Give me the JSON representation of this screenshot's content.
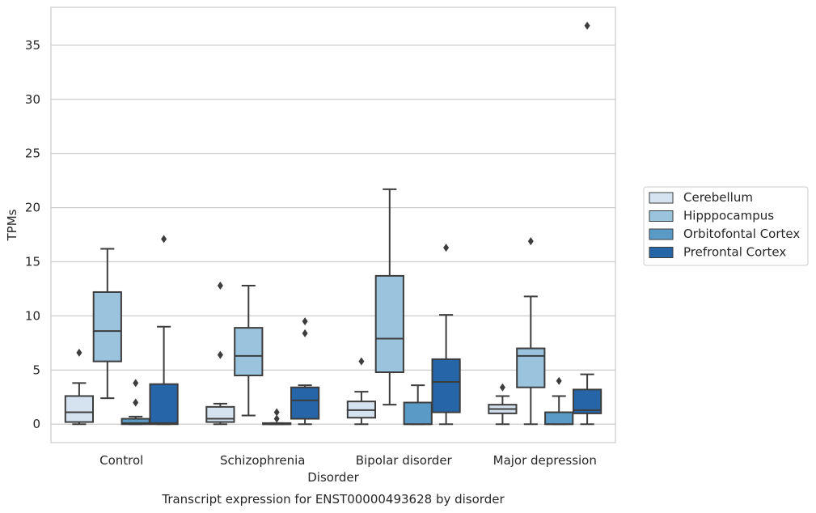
{
  "chart_data": {
    "type": "box",
    "title": "",
    "xlabel": "Disorder",
    "ylabel": "TPMs",
    "caption": "Transcript expression for ENST00000493628 by disorder",
    "ylim": [
      -1.7,
      38.5
    ],
    "yticks": [
      0,
      5,
      10,
      15,
      20,
      25,
      30,
      35
    ],
    "grid": "horizontal",
    "legend_position": "right",
    "categories": [
      "Control",
      "Schizophrenia",
      "Bipolar disorder",
      "Major depression"
    ],
    "series": [
      {
        "name": "Cerebellum",
        "color": "#d5e3f0",
        "boxes": [
          {
            "whisker_low": 0.0,
            "q1": 0.2,
            "median": 1.1,
            "q3": 2.6,
            "whisker_high": 3.8,
            "outliers": [
              6.6
            ]
          },
          {
            "whisker_low": 0.0,
            "q1": 0.2,
            "median": 0.5,
            "q3": 1.6,
            "whisker_high": 1.9,
            "outliers": [
              12.8,
              6.4
            ]
          },
          {
            "whisker_low": 0.0,
            "q1": 0.6,
            "median": 1.3,
            "q3": 2.1,
            "whisker_high": 3.0,
            "outliers": [
              5.8
            ]
          },
          {
            "whisker_low": 0.0,
            "q1": 1.0,
            "median": 1.4,
            "q3": 1.8,
            "whisker_high": 2.6,
            "outliers": [
              3.4
            ]
          }
        ]
      },
      {
        "name": "Hipppocampus",
        "color": "#9ac3dd",
        "boxes": [
          {
            "whisker_low": 2.4,
            "q1": 5.8,
            "median": 8.6,
            "q3": 12.2,
            "whisker_high": 16.2,
            "outliers": []
          },
          {
            "whisker_low": 0.8,
            "q1": 4.5,
            "median": 6.3,
            "q3": 8.9,
            "whisker_high": 12.8,
            "outliers": []
          },
          {
            "whisker_low": 1.8,
            "q1": 4.8,
            "median": 7.9,
            "q3": 13.7,
            "whisker_high": 21.7,
            "outliers": []
          },
          {
            "whisker_low": 0.0,
            "q1": 3.4,
            "median": 6.3,
            "q3": 7.0,
            "whisker_high": 11.8,
            "outliers": [
              16.9
            ]
          }
        ]
      },
      {
        "name": "Orbitofontal Cortex",
        "color": "#5a9ac6",
        "boxes": [
          {
            "whisker_low": 0.0,
            "q1": 0.0,
            "median": 0.1,
            "q3": 0.5,
            "whisker_high": 0.7,
            "outliers": [
              3.8,
              2.0
            ]
          },
          {
            "whisker_low": 0.0,
            "q1": 0.0,
            "median": 0.0,
            "q3": 0.1,
            "whisker_high": 0.1,
            "outliers": [
              1.1,
              0.5
            ]
          },
          {
            "whisker_low": 0.0,
            "q1": 0.0,
            "median": 0.0,
            "q3": 2.0,
            "whisker_high": 3.6,
            "outliers": []
          },
          {
            "whisker_low": 0.0,
            "q1": 0.0,
            "median": 0.0,
            "q3": 1.1,
            "whisker_high": 2.6,
            "outliers": [
              4.0
            ]
          }
        ]
      },
      {
        "name": "Prefrontal Cortex",
        "color": "#2565a8",
        "boxes": [
          {
            "whisker_low": 0.0,
            "q1": 0.0,
            "median": 0.1,
            "q3": 3.7,
            "whisker_high": 9.0,
            "outliers": [
              17.1
            ]
          },
          {
            "whisker_low": 0.0,
            "q1": 0.5,
            "median": 2.2,
            "q3": 3.4,
            "whisker_high": 3.6,
            "outliers": [
              9.5,
              8.4
            ]
          },
          {
            "whisker_low": 0.0,
            "q1": 1.1,
            "median": 3.9,
            "q3": 6.0,
            "whisker_high": 10.1,
            "outliers": [
              16.3
            ]
          },
          {
            "whisker_low": 0.0,
            "q1": 1.0,
            "median": 1.3,
            "q3": 3.2,
            "whisker_high": 4.6,
            "outliers": [
              36.8
            ]
          }
        ]
      }
    ]
  }
}
